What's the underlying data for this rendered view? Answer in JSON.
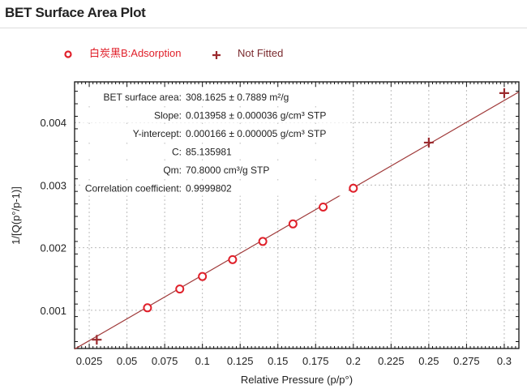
{
  "title": "BET Surface Area Plot",
  "chart_data": {
    "type": "scatter",
    "xlabel": "Relative Pressure (p/p°)",
    "ylabel": "1/[Q(p°/p-1)]",
    "xlim": [
      0.0153,
      0.3097
    ],
    "ylim": [
      0.00039,
      0.00465
    ],
    "xticks": [
      "0.025",
      "0.05",
      "0.075",
      "0.1",
      "0.125",
      "0.15",
      "0.175",
      "0.2",
      "0.225",
      "0.25",
      "0.275",
      "0.3"
    ],
    "yticks": [
      "0.001",
      "0.002",
      "0.003",
      "0.004"
    ],
    "grid": true,
    "legend_placement": "top",
    "series": [
      {
        "name": "白炭黑B:Adsorption",
        "marker": "circle",
        "color": "#e0202a",
        "x": [
          0.0636,
          0.085,
          0.1,
          0.12,
          0.14,
          0.16,
          0.18,
          0.2
        ],
        "y": [
          0.00104,
          0.00134,
          0.00154,
          0.00181,
          0.0021,
          0.00238,
          0.00265,
          0.00295
        ]
      },
      {
        "name": "Not Fitted",
        "marker": "plus",
        "color": "#9b2a2e",
        "x": [
          0.03,
          0.25,
          0.3
        ],
        "y": [
          0.00053,
          0.00368,
          0.00447
        ]
      }
    ],
    "fit": {
      "slope": 0.013958,
      "intercept": 0.000166,
      "color": "#a03a3a"
    },
    "annotations": [
      {
        "label": "BET surface area:",
        "value": "308.1625 ± 0.7889 m²/g"
      },
      {
        "label": "Slope:",
        "value": "0.013958 ± 0.000036 g/cm³ STP"
      },
      {
        "label": "Y-intercept:",
        "value": "0.000166 ± 0.000005 g/cm³ STP"
      },
      {
        "label": "C:",
        "value": "85.135981"
      },
      {
        "label": "Qm:",
        "value": "70.8000 cm³/g STP"
      },
      {
        "label": "Correlation coefficient:",
        "value": "0.9999802"
      }
    ]
  }
}
